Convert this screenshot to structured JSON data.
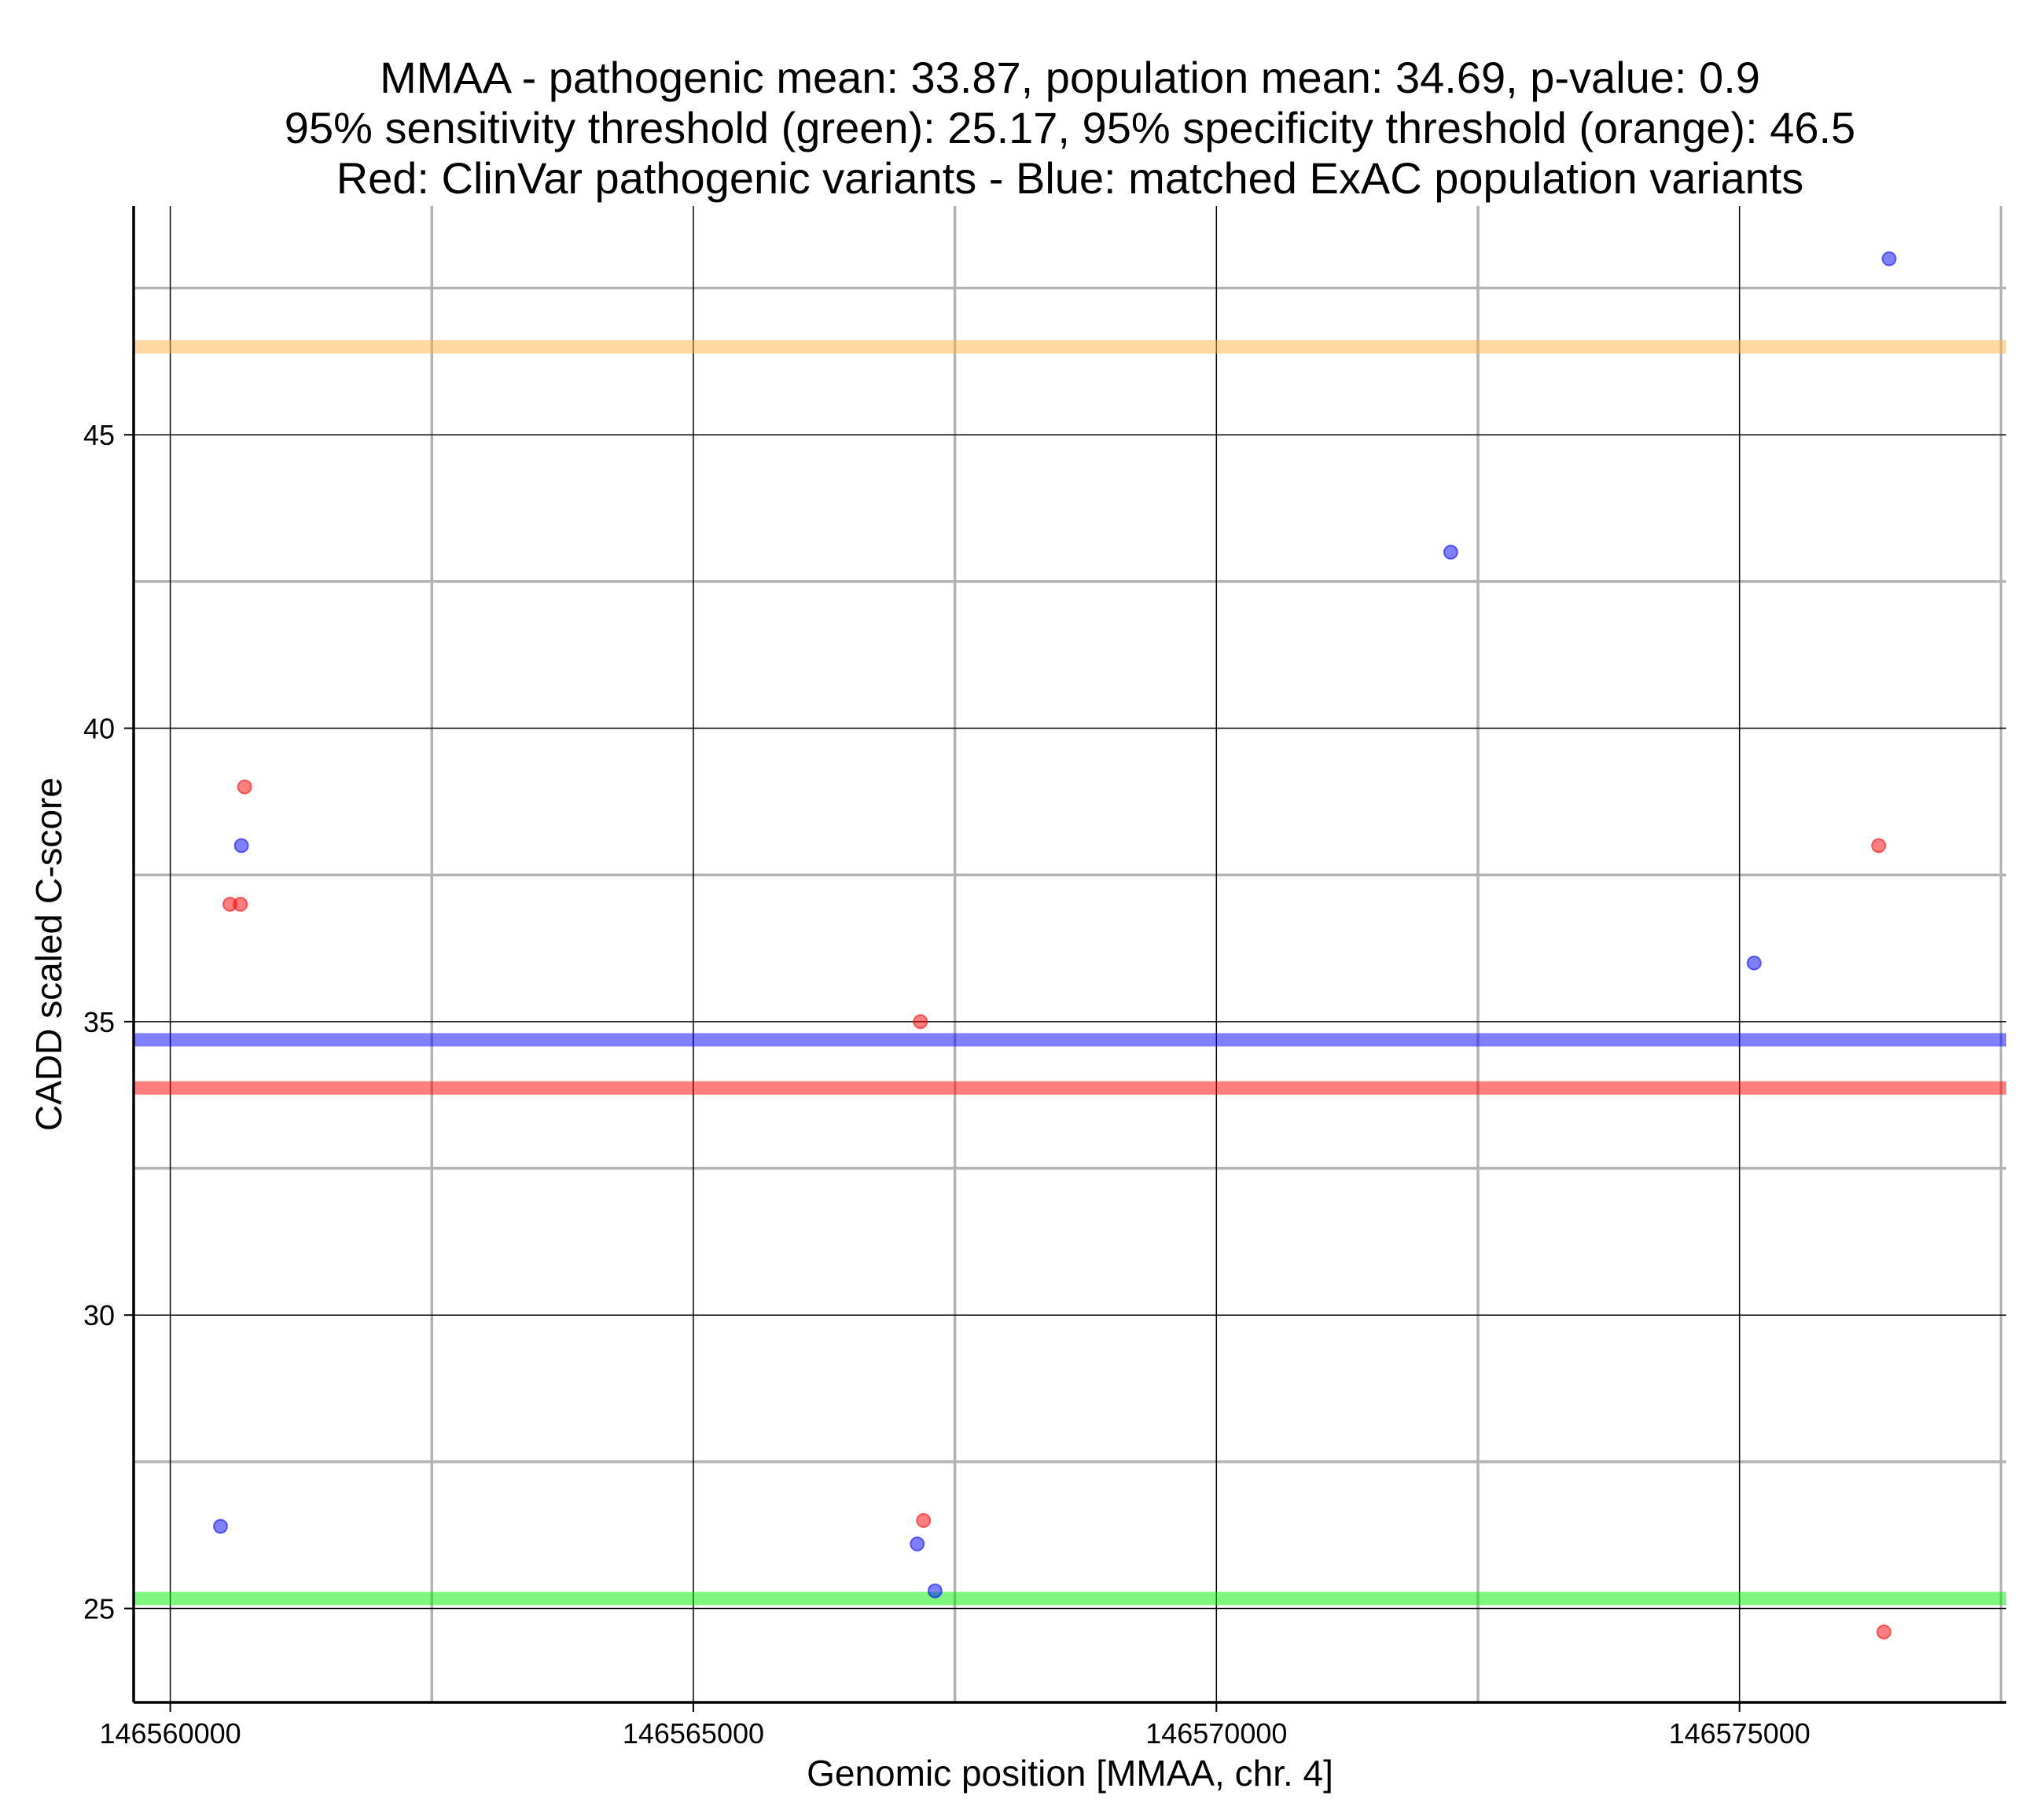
{
  "chart_data": {
    "type": "scatter",
    "title_lines": [
      "MMAA - pathogenic mean: 33.87, population mean: 34.69, p-value: 0.9",
      "95% sensitivity threshold (green): 25.17, 95% specificity threshold (orange): 46.5",
      "Red: ClinVar pathogenic variants - Blue: matched ExAC population variants"
    ],
    "xlabel": "Genomic position [MMAA, chr. 4]",
    "ylabel": "CADD scaled C-score",
    "xlim": [
      146559650,
      146577550
    ],
    "ylim": [
      23.4,
      48.9
    ],
    "x_ticks": [
      146560000,
      146565000,
      146570000,
      146575000
    ],
    "x_tick_labels": [
      "146560000",
      "146565000",
      "146570000",
      "146575000"
    ],
    "y_ticks": [
      25,
      30,
      35,
      40,
      45
    ],
    "y_tick_labels": [
      "25",
      "30",
      "35",
      "40",
      "45"
    ],
    "grid": true,
    "reference_lines": [
      {
        "value": 46.5,
        "color": "#ffb143"
      },
      {
        "value": 34.69,
        "color": "#0000ff"
      },
      {
        "value": 33.87,
        "color": "#ff0000"
      },
      {
        "value": 25.17,
        "color": "#00ee00"
      }
    ],
    "series": [
      {
        "color": "#ff0000",
        "points": [
          {
            "x": 146560570,
            "y": 37.0
          },
          {
            "x": 146560670,
            "y": 37.0
          },
          {
            "x": 146560710,
            "y": 39.0
          },
          {
            "x": 146567170,
            "y": 35.0
          },
          {
            "x": 146567200,
            "y": 26.5
          },
          {
            "x": 146576330,
            "y": 38.0
          },
          {
            "x": 146576380,
            "y": 24.6
          }
        ]
      },
      {
        "color": "#0000ff",
        "points": [
          {
            "x": 146560480,
            "y": 26.4
          },
          {
            "x": 146560680,
            "y": 38.0
          },
          {
            "x": 146567140,
            "y": 26.1
          },
          {
            "x": 146567310,
            "y": 25.3
          },
          {
            "x": 146572240,
            "y": 43.0
          },
          {
            "x": 146575140,
            "y": 36.0
          },
          {
            "x": 146576430,
            "y": 48.0
          }
        ]
      }
    ]
  }
}
